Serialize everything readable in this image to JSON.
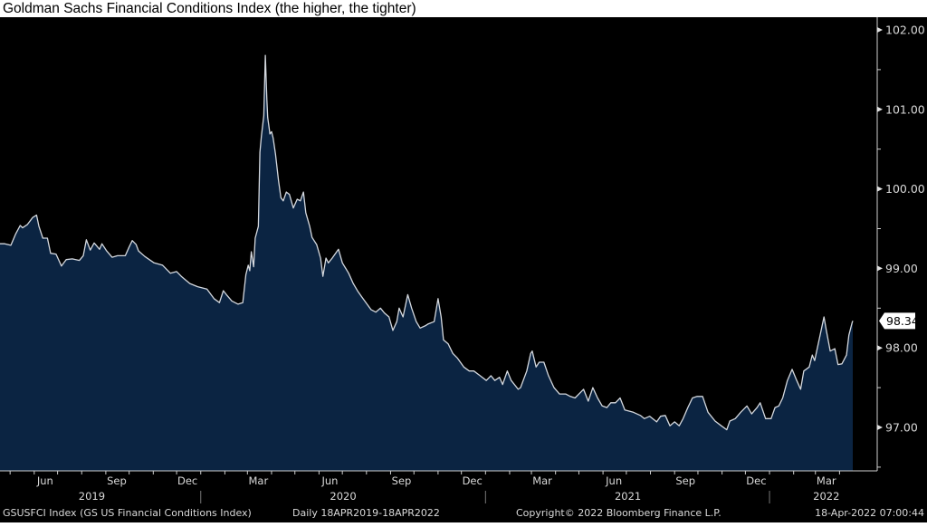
{
  "chart_data": {
    "type": "area",
    "title": "Goldman Sachs Financial Conditions Index (the higher, the tighter)",
    "series_name": "GSUSFCI Index (GS US Financial Conditions Index)",
    "x_unit": "days since 18-Apr-2019",
    "x_range": [
      0,
      1096
    ],
    "ylim": [
      96.45,
      102.38
    ],
    "y_ticks": [
      "102.00",
      "101.00",
      "100.00",
      "99.00",
      "98.00",
      "97.00"
    ],
    "y_tick_values": [
      102,
      101,
      100,
      99,
      98,
      97
    ],
    "last_value_label": "98.34",
    "last_value": 98.34,
    "month_labels": [
      {
        "label": "Jun",
        "day": 58
      },
      {
        "label": "Sep",
        "day": 150
      },
      {
        "label": "Dec",
        "day": 241
      },
      {
        "label": "Mar",
        "day": 332
      },
      {
        "label": "Jun",
        "day": 424
      },
      {
        "label": "Sep",
        "day": 516
      },
      {
        "label": "Dec",
        "day": 607
      },
      {
        "label": "Mar",
        "day": 697
      },
      {
        "label": "Jun",
        "day": 789
      },
      {
        "label": "Sep",
        "day": 881
      },
      {
        "label": "Dec",
        "day": 972
      },
      {
        "label": "Mar",
        "day": 1062
      }
    ],
    "year_labels": [
      {
        "label": "2019",
        "day": 118
      },
      {
        "label": "2020",
        "day": 441
      },
      {
        "label": "2021",
        "day": 807
      },
      {
        "label": "2022",
        "day": 1062
      }
    ],
    "year_boundaries": [
      258,
      624,
      989
    ],
    "colors": {
      "fill": "#0b2442",
      "line": "#d4d8de",
      "background": "#000000",
      "text": "#d9d9d9"
    },
    "points": [
      [
        0,
        99.31
      ],
      [
        6,
        99.31
      ],
      [
        14,
        99.29
      ],
      [
        20,
        99.43
      ],
      [
        26,
        99.54
      ],
      [
        29,
        99.51
      ],
      [
        35,
        99.55
      ],
      [
        42,
        99.64
      ],
      [
        47,
        99.67
      ],
      [
        50,
        99.53
      ],
      [
        55,
        99.38
      ],
      [
        61,
        99.38
      ],
      [
        65,
        99.19
      ],
      [
        72,
        99.18
      ],
      [
        79,
        99.03
      ],
      [
        85,
        99.11
      ],
      [
        93,
        99.12
      ],
      [
        102,
        99.1
      ],
      [
        107,
        99.16
      ],
      [
        111,
        99.36
      ],
      [
        116,
        99.23
      ],
      [
        121,
        99.32
      ],
      [
        128,
        99.24
      ],
      [
        131,
        99.31
      ],
      [
        137,
        99.22
      ],
      [
        144,
        99.14
      ],
      [
        151,
        99.16
      ],
      [
        161,
        99.16
      ],
      [
        166,
        99.27
      ],
      [
        170,
        99.35
      ],
      [
        175,
        99.3
      ],
      [
        178,
        99.22
      ],
      [
        186,
        99.15
      ],
      [
        198,
        99.07
      ],
      [
        209,
        99.04
      ],
      [
        219,
        98.94
      ],
      [
        227,
        98.96
      ],
      [
        233,
        98.9
      ],
      [
        244,
        98.81
      ],
      [
        254,
        98.77
      ],
      [
        266,
        98.74
      ],
      [
        275,
        98.62
      ],
      [
        282,
        98.57
      ],
      [
        287,
        98.72
      ],
      [
        291,
        98.67
      ],
      [
        298,
        98.59
      ],
      [
        306,
        98.55
      ],
      [
        312,
        98.57
      ],
      [
        316,
        98.92
      ],
      [
        319,
        99.04
      ],
      [
        321,
        98.97
      ],
      [
        323,
        99.21
      ],
      [
        326,
        99.02
      ],
      [
        328,
        99.38
      ],
      [
        332,
        99.53
      ],
      [
        334,
        100.46
      ],
      [
        336,
        100.67
      ],
      [
        339,
        100.92
      ],
      [
        341,
        101.68
      ],
      [
        343,
        101.12
      ],
      [
        344,
        100.9
      ],
      [
        347,
        100.69
      ],
      [
        349,
        100.72
      ],
      [
        351,
        100.64
      ],
      [
        354,
        100.44
      ],
      [
        358,
        100.1
      ],
      [
        361,
        99.89
      ],
      [
        364,
        99.85
      ],
      [
        368,
        99.96
      ],
      [
        372,
        99.93
      ],
      [
        377,
        99.76
      ],
      [
        382,
        99.87
      ],
      [
        386,
        99.85
      ],
      [
        390,
        99.96
      ],
      [
        393,
        99.7
      ],
      [
        398,
        99.53
      ],
      [
        401,
        99.39
      ],
      [
        407,
        99.3
      ],
      [
        412,
        99.13
      ],
      [
        415,
        98.9
      ],
      [
        419,
        99.13
      ],
      [
        422,
        99.07
      ],
      [
        427,
        99.13
      ],
      [
        435,
        99.24
      ],
      [
        440,
        99.07
      ],
      [
        448,
        98.94
      ],
      [
        454,
        98.81
      ],
      [
        460,
        98.71
      ],
      [
        465,
        98.64
      ],
      [
        471,
        98.56
      ],
      [
        477,
        98.48
      ],
      [
        483,
        98.45
      ],
      [
        489,
        98.5
      ],
      [
        494,
        98.44
      ],
      [
        500,
        98.39
      ],
      [
        505,
        98.22
      ],
      [
        510,
        98.33
      ],
      [
        513,
        98.5
      ],
      [
        518,
        98.39
      ],
      [
        524,
        98.67
      ],
      [
        529,
        98.5
      ],
      [
        535,
        98.33
      ],
      [
        540,
        98.25
      ],
      [
        547,
        98.28
      ],
      [
        550,
        98.3
      ],
      [
        558,
        98.33
      ],
      [
        563,
        98.62
      ],
      [
        567,
        98.39
      ],
      [
        570,
        98.1
      ],
      [
        576,
        98.05
      ],
      [
        582,
        97.93
      ],
      [
        588,
        97.87
      ],
      [
        596,
        97.76
      ],
      [
        603,
        97.71
      ],
      [
        609,
        97.71
      ],
      [
        617,
        97.65
      ],
      [
        625,
        97.59
      ],
      [
        631,
        97.65
      ],
      [
        636,
        97.59
      ],
      [
        642,
        97.63
      ],
      [
        646,
        97.54
      ],
      [
        652,
        97.71
      ],
      [
        657,
        97.59
      ],
      [
        666,
        97.48
      ],
      [
        669,
        97.5
      ],
      [
        677,
        97.71
      ],
      [
        682,
        97.93
      ],
      [
        684,
        97.96
      ],
      [
        689,
        97.76
      ],
      [
        693,
        97.82
      ],
      [
        699,
        97.82
      ],
      [
        705,
        97.65
      ],
      [
        712,
        97.5
      ],
      [
        719,
        97.42
      ],
      [
        727,
        97.42
      ],
      [
        733,
        97.39
      ],
      [
        739,
        97.37
      ],
      [
        750,
        97.48
      ],
      [
        756,
        97.33
      ],
      [
        762,
        97.5
      ],
      [
        768,
        97.37
      ],
      [
        774,
        97.27
      ],
      [
        780,
        97.25
      ],
      [
        785,
        97.31
      ],
      [
        791,
        97.31
      ],
      [
        797,
        97.37
      ],
      [
        803,
        97.22
      ],
      [
        814,
        97.19
      ],
      [
        823,
        97.15
      ],
      [
        828,
        97.11
      ],
      [
        835,
        97.14
      ],
      [
        844,
        97.07
      ],
      [
        849,
        97.14
      ],
      [
        855,
        97.15
      ],
      [
        861,
        97.02
      ],
      [
        867,
        97.07
      ],
      [
        873,
        97.02
      ],
      [
        878,
        97.11
      ],
      [
        884,
        97.25
      ],
      [
        890,
        97.37
      ],
      [
        896,
        97.39
      ],
      [
        903,
        97.39
      ],
      [
        910,
        97.19
      ],
      [
        919,
        97.08
      ],
      [
        927,
        97.02
      ],
      [
        934,
        96.97
      ],
      [
        938,
        97.08
      ],
      [
        945,
        97.11
      ],
      [
        952,
        97.19
      ],
      [
        960,
        97.27
      ],
      [
        966,
        97.17
      ],
      [
        973,
        97.25
      ],
      [
        977,
        97.31
      ],
      [
        984,
        97.11
      ],
      [
        991,
        97.11
      ],
      [
        996,
        97.25
      ],
      [
        1001,
        97.27
      ],
      [
        1006,
        97.37
      ],
      [
        1012,
        97.59
      ],
      [
        1018,
        97.73
      ],
      [
        1024,
        97.59
      ],
      [
        1029,
        97.48
      ],
      [
        1033,
        97.71
      ],
      [
        1040,
        97.76
      ],
      [
        1044,
        97.91
      ],
      [
        1047,
        97.84
      ],
      [
        1054,
        98.16
      ],
      [
        1059,
        98.39
      ],
      [
        1062,
        98.22
      ],
      [
        1067,
        97.96
      ],
      [
        1073,
        97.99
      ],
      [
        1077,
        97.79
      ],
      [
        1082,
        97.8
      ],
      [
        1088,
        97.91
      ],
      [
        1091,
        98.16
      ],
      [
        1095,
        98.31
      ],
      [
        1096,
        98.34
      ]
    ]
  },
  "footer": {
    "series": "GSUSFCI Index (GS US Financial Conditions Index)",
    "range": "Daily 18APR2019-18APR2022",
    "copyright": "Copyright© 2022 Bloomberg Finance L.P.",
    "timestamp": "18-Apr-2022 07:00:44"
  }
}
